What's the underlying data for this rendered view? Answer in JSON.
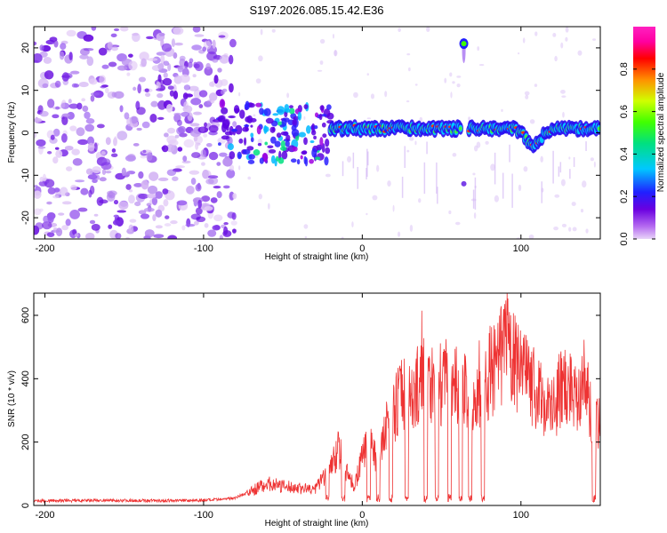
{
  "figure_title": "S197.2026.085.15.42.E36",
  "chart_data": [
    {
      "type": "heatmap",
      "title": "S197.2026.085.15.42.E36",
      "xlabel": "Height of straight line (km)",
      "ylabel": "Frequency (Hz)",
      "xlim": [
        -207,
        150
      ],
      "ylim": [
        -25,
        25
      ],
      "xticks": [
        -200,
        -100,
        0,
        100
      ],
      "yticks": [
        -20,
        -10,
        0,
        10,
        20
      ],
      "colorbar": {
        "label": "Normalized spectral amplitude",
        "range": [
          0,
          1
        ],
        "ticks": [
          0.0,
          0.2,
          0.4,
          0.6,
          0.8
        ],
        "colormap": [
          "#e8d4f8",
          "#b469f0",
          "#6a00e0",
          "#2020ff",
          "#00c8ff",
          "#00e080",
          "#40ff00",
          "#d0ff00",
          "#ff9000",
          "#ff0000",
          "#ff00a0",
          "#ff20c0"
        ]
      },
      "features": {
        "noise_region_x": [
          -207,
          -80
        ],
        "signal_line_x": [
          -20,
          150
        ],
        "signal_freq_hz": 1,
        "dip_near_x": 108,
        "dip_freq_hz": -3,
        "isolated_spot": {
          "x": 64,
          "freq_hz": 21
        }
      }
    },
    {
      "type": "line",
      "xlabel": "Height of straight line (km)",
      "ylabel": "SNR (10 * v/v)",
      "xlim": [
        -207,
        150
      ],
      "ylim": [
        0,
        670
      ],
      "xticks": [
        -200,
        -100,
        0,
        100
      ],
      "yticks": [
        0,
        200,
        400,
        600
      ],
      "color": "#ee3333",
      "series": [
        {
          "name": "SNR",
          "x": [
            -207,
            -180,
            -150,
            -120,
            -90,
            -80,
            -70,
            -60,
            -50,
            -40,
            -30,
            -20,
            -15,
            -10,
            -5,
            0,
            5,
            10,
            15,
            20,
            25,
            30,
            35,
            40,
            45,
            50,
            55,
            60,
            65,
            70,
            75,
            80,
            85,
            90,
            95,
            100,
            105,
            110,
            115,
            120,
            125,
            130,
            135,
            140,
            145,
            150
          ],
          "values": [
            15,
            15,
            16,
            15,
            18,
            25,
            45,
            70,
            60,
            55,
            50,
            120,
            180,
            110,
            60,
            150,
            200,
            130,
            240,
            300,
            360,
            350,
            380,
            420,
            390,
            380,
            410,
            370,
            360,
            330,
            380,
            420,
            430,
            520,
            460,
            410,
            400,
            350,
            330,
            300,
            370,
            380,
            360,
            400,
            260,
            280
          ]
        }
      ]
    }
  ]
}
